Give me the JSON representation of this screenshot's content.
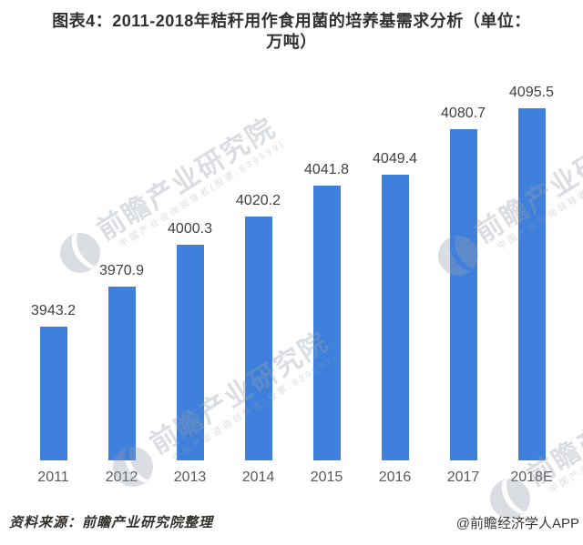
{
  "title": {
    "full": "图表4：2011-2018年秸秆用作食用菌的培养基需求分析（单位：万吨）",
    "lines": [
      "图表4：2011-2018年秸秆用作食用菌的培养基需求分析（单位：",
      "万吨）"
    ]
  },
  "chart_data": {
    "type": "bar",
    "title": "图表4：2011-2018年秸秆用作食用菌的培养基需求分析（单位：万吨）",
    "categories": [
      "2011",
      "2012",
      "2013",
      "2014",
      "2015",
      "2016",
      "2017",
      "2018E"
    ],
    "values": [
      3943.2,
      3970.9,
      4000.3,
      4020.2,
      4041.8,
      4049.4,
      4080.7,
      4095.5
    ],
    "unit": "万吨",
    "xlabel": "",
    "ylabel": "",
    "ylim": [
      3850,
      4100
    ],
    "grid": false,
    "data_labels": true,
    "legend": false,
    "bar_color": "#3E80DC",
    "value_label_color": "#404040",
    "tick_label_color": "#595959"
  },
  "watermark": {
    "logo": "qianzhan-logo-icon",
    "text": "前瞻产业研究院",
    "subtext": "中国产业咨询领导者(股票:839599)"
  },
  "footer": {
    "source": "资料来源：前瞻产业研究院整理",
    "credit": "@前瞻经济学人APP"
  }
}
